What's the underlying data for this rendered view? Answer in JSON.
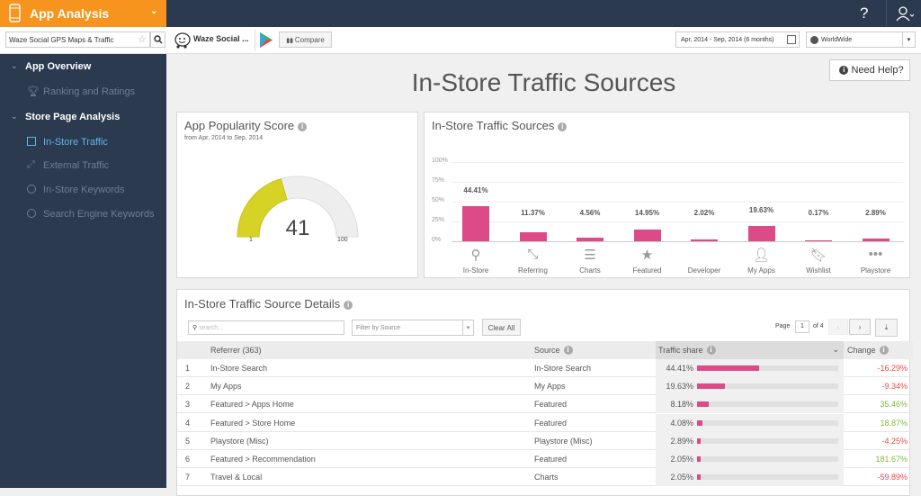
{
  "header": {
    "app_title": "App Analysis",
    "help_icon": "?",
    "user_icon": "user-icon"
  },
  "subbar": {
    "search_value": "Waze Social GPS Maps & Traffic",
    "app_name": "Waze Social ...",
    "compare_label": "Compare",
    "date_range": "Apr, 2014 - Sep, 2014 (6 months)",
    "region": "WorldWide"
  },
  "sidebar": {
    "items": [
      {
        "label": "App Overview",
        "type": "section"
      },
      {
        "label": "Ranking and Ratings",
        "type": "item"
      },
      {
        "label": "Store Page Analysis",
        "type": "section"
      },
      {
        "label": "In-Store Traffic",
        "type": "item",
        "active": true
      },
      {
        "label": "External Traffic",
        "type": "item"
      },
      {
        "label": "In-Store Keywords",
        "type": "item"
      },
      {
        "label": "Search Engine Keywords",
        "type": "item"
      }
    ]
  },
  "page": {
    "title": "In-Store Traffic Sources",
    "help_label": "Need Help?"
  },
  "popularity": {
    "title": "App Popularity Score",
    "subtitle": "from Apr, 2014 to Sep, 2014",
    "score": "41",
    "min": "1",
    "max": "100",
    "score_value": 41,
    "fill_color": "#d7d226"
  },
  "chart_data": {
    "type": "bar",
    "title": "In-Store Traffic Sources",
    "categories": [
      "In-Store",
      "Referring",
      "Charts",
      "Featured",
      "Developer",
      "My Apps",
      "Wishlist",
      "Playstore"
    ],
    "values": [
      44.41,
      11.37,
      4.56,
      14.95,
      2.02,
      19.63,
      0.17,
      2.89
    ],
    "labels": [
      "44.41%",
      "11.37%",
      "4.56%",
      "14.95%",
      "2.02%",
      "19.63%",
      "0.17%",
      "2.89%"
    ],
    "icons": [
      "search-icon",
      "referring-arrows-icon",
      "list-icon",
      "star-icon",
      "code-icon",
      "person-icon",
      "bookmark-icon",
      "more-icon"
    ],
    "yticks": [
      "100%",
      "75%",
      "50%",
      "25%",
      "0%"
    ],
    "ylim": [
      0,
      100
    ],
    "color": "#dc4a88",
    "grid": true
  },
  "details": {
    "title": "In-Store Traffic Source Details",
    "search_placeholder": "search...",
    "filter_placeholder": "Filter by Source",
    "clear_label": "Clear All",
    "page_label": "Page",
    "page_value": "1",
    "page_of": "of 4",
    "columns": [
      "Referrer (363)",
      "Source",
      "Traffic share",
      "Change"
    ],
    "rows": [
      {
        "n": "1",
        "referrer": "In-Store Search",
        "source": "In-Store Search",
        "share": "44.41%",
        "share_value": 44.41,
        "change": "-16.29%",
        "dir": "neg"
      },
      {
        "n": "2",
        "referrer": "My Apps",
        "source": "My Apps",
        "share": "19.63%",
        "share_value": 19.63,
        "change": "-9.34%",
        "dir": "neg"
      },
      {
        "n": "3",
        "referrer": "Featured > Apps Home",
        "source": "Featured",
        "share": "8.18%",
        "share_value": 8.18,
        "change": "35.46%",
        "dir": "pos"
      },
      {
        "n": "4",
        "referrer": "Featured > Store Home",
        "source": "Featured",
        "share": "4.08%",
        "share_value": 4.08,
        "change": "18.87%",
        "dir": "pos"
      },
      {
        "n": "5",
        "referrer": "Playstore (Misc)",
        "source": "Playstore (Misc)",
        "share": "2.89%",
        "share_value": 2.89,
        "change": "-4.25%",
        "dir": "neg"
      },
      {
        "n": "6",
        "referrer": "Featured > Recommendation",
        "source": "Featured",
        "share": "2.05%",
        "share_value": 2.05,
        "change": "181.67%",
        "dir": "pos"
      },
      {
        "n": "7",
        "referrer": "Travel & Local",
        "source": "Charts",
        "share": "2.05%",
        "share_value": 2.05,
        "change": "-59.89%",
        "dir": "neg"
      }
    ]
  }
}
